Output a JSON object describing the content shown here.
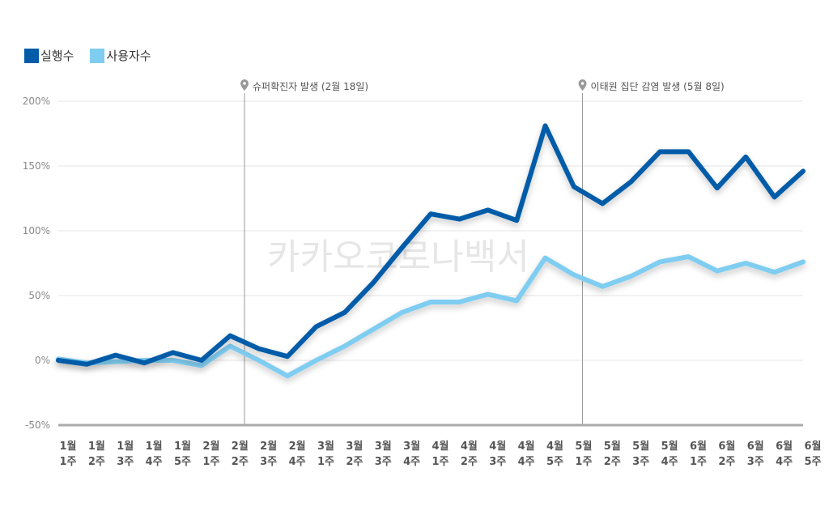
{
  "chart_data": {
    "type": "line",
    "title": "",
    "xlabel": "",
    "ylabel": "",
    "ylim": [
      -50,
      200
    ],
    "yticks": [
      "200%",
      "150%",
      "100%",
      "50%",
      "0%",
      "-50%"
    ],
    "ytick_values": [
      200,
      150,
      100,
      50,
      0,
      -50
    ],
    "grid": true,
    "legend_position": "top-left",
    "categories": [
      [
        "1월",
        "1주"
      ],
      [
        "1월",
        "2주"
      ],
      [
        "1월",
        "3주"
      ],
      [
        "1월",
        "4주"
      ],
      [
        "1월",
        "5주"
      ],
      [
        "2월",
        "1주"
      ],
      [
        "2월",
        "2주"
      ],
      [
        "2월",
        "3주"
      ],
      [
        "2월",
        "4주"
      ],
      [
        "3월",
        "1주"
      ],
      [
        "3월",
        "2주"
      ],
      [
        "3월",
        "3주"
      ],
      [
        "3월",
        "4주"
      ],
      [
        "4월",
        "1주"
      ],
      [
        "4월",
        "2주"
      ],
      [
        "4월",
        "3주"
      ],
      [
        "4월",
        "4주"
      ],
      [
        "4월",
        "5주"
      ],
      [
        "5월",
        "1주"
      ],
      [
        "5월",
        "2주"
      ],
      [
        "5월",
        "3주"
      ],
      [
        "5월",
        "4주"
      ],
      [
        "6월",
        "1주"
      ],
      [
        "6월",
        "2주"
      ],
      [
        "6월",
        "3주"
      ],
      [
        "6월",
        "4주"
      ],
      [
        "6월",
        "5주"
      ]
    ],
    "series": [
      {
        "name": "실행수",
        "color": "#005ba8",
        "values": [
          0,
          -3,
          4,
          -2,
          6,
          0,
          19,
          9,
          3,
          26,
          37,
          60,
          87,
          113,
          109,
          116,
          108,
          181,
          134,
          121,
          138,
          161,
          161,
          133,
          157,
          126,
          146
        ]
      },
      {
        "name": "사용자수",
        "color": "#7fcdf1",
        "values": [
          1,
          -2,
          -1,
          0,
          0,
          -4,
          11,
          0,
          -12,
          0,
          11,
          24,
          37,
          45,
          45,
          51,
          46,
          79,
          66,
          57,
          65,
          76,
          80,
          69,
          75,
          68,
          76
        ]
      }
    ],
    "annotations": [
      {
        "label": "슈퍼확진자 발생 (2월 18일)",
        "x_index": 6.5
      },
      {
        "label": "이태원 집단 감염 발생 (5월 8일)",
        "x_index": 18.3
      }
    ],
    "watermark": "카카오코로나백서"
  }
}
